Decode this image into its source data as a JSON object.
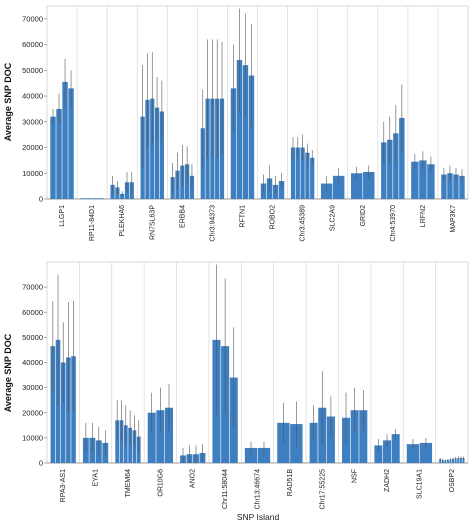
{
  "chart_data": [
    {
      "type": "bar",
      "ylabel": "Average SNP DOC",
      "xlabel": "",
      "ylim": [
        0,
        75000
      ],
      "yticks": [
        0,
        10000,
        20000,
        30000,
        40000,
        50000,
        60000,
        70000
      ],
      "grid": "vertical",
      "bar_color": "#3d7fc1",
      "groups": [
        {
          "name": "LLGP1",
          "values": [
            32000,
            35000,
            45500,
            43000
          ],
          "errors": [
            3000,
            6000,
            9000,
            7000
          ]
        },
        {
          "name": "RP11-84D1",
          "values": [
            300,
            300,
            300,
            300
          ],
          "errors": [
            0,
            0,
            0,
            0
          ]
        },
        {
          "name": "PLEKHA6",
          "values": [
            5500,
            4500,
            2000,
            6500,
            6500
          ],
          "errors": [
            3500,
            2500,
            1000,
            4000,
            4000
          ]
        },
        {
          "name": "RN7SL63P",
          "values": [
            32000,
            38500,
            39000,
            35500,
            34000
          ],
          "errors": [
            20000,
            18000,
            18000,
            12000,
            12000
          ]
        },
        {
          "name": "ERBB4",
          "values": [
            8500,
            11000,
            13000,
            13500,
            9000
          ],
          "errors": [
            5500,
            7000,
            8000,
            7000,
            4500
          ]
        },
        {
          "name": "Chr3:94373",
          "values": [
            27500,
            39000,
            39000,
            39000,
            39000
          ],
          "errors": [
            15000,
            23000,
            23000,
            23000,
            22000
          ]
        },
        {
          "name": "RFTN1",
          "values": [
            43000,
            54000,
            52000,
            48000
          ],
          "errors": [
            17000,
            20000,
            20000,
            20000
          ]
        },
        {
          "name": "ROBO2",
          "values": [
            6000,
            8000,
            5500,
            7000
          ],
          "errors": [
            3500,
            5000,
            3500,
            3000
          ]
        },
        {
          "name": "Chr3:45389",
          "values": [
            20000,
            20000,
            20000,
            18000,
            16000
          ],
          "errors": [
            4000,
            4000,
            5000,
            3500,
            3000
          ]
        },
        {
          "name": "SLC2A9",
          "values": [
            6000,
            9000
          ],
          "errors": [
            3000,
            3000
          ]
        },
        {
          "name": "GRID2",
          "values": [
            10000,
            10500
          ],
          "errors": [
            2500,
            2500
          ]
        },
        {
          "name": "Chr4:53970",
          "values": [
            22000,
            23000,
            25500,
            31500
          ],
          "errors": [
            8000,
            9000,
            11000,
            13000
          ]
        },
        {
          "name": "LRFN2",
          "values": [
            14500,
            15000,
            13500
          ],
          "errors": [
            3000,
            3500,
            3000
          ]
        },
        {
          "name": "MAP3K7",
          "values": [
            9500,
            10000,
            9500,
            9000
          ],
          "errors": [
            2500,
            3000,
            2500,
            2500
          ]
        }
      ]
    },
    {
      "type": "bar",
      "ylabel": "Average SNP DOC",
      "xlabel": "SNP Island",
      "ylim": [
        0,
        80000
      ],
      "yticks": [
        0,
        10000,
        20000,
        30000,
        40000,
        50000,
        60000,
        70000
      ],
      "grid": "vertical",
      "bar_color": "#3d7fc1",
      "groups": [
        {
          "name": "RPA3-AS1",
          "values": [
            46500,
            49000,
            40000,
            42000,
            42500
          ],
          "errors": [
            18000,
            26000,
            16000,
            22000,
            22000
          ]
        },
        {
          "name": "EYA1",
          "values": [
            10000,
            10000,
            9000,
            8000
          ],
          "errors": [
            6000,
            6000,
            5500,
            5000
          ]
        },
        {
          "name": "TMEM64",
          "values": [
            17000,
            17000,
            15000,
            14000,
            13000,
            10500
          ],
          "errors": [
            8000,
            8000,
            8000,
            7000,
            6000,
            6500
          ]
        },
        {
          "name": "OR10G6",
          "values": [
            20000,
            21000,
            22000
          ],
          "errors": [
            8000,
            9000,
            9500
          ]
        },
        {
          "name": "ANO2",
          "values": [
            3000,
            3500,
            3500,
            4000
          ],
          "errors": [
            3000,
            3500,
            3500,
            3500
          ]
        },
        {
          "name": "Chr11:58044",
          "values": [
            49000,
            46500,
            34000
          ],
          "errors": [
            30000,
            27000,
            20000
          ]
        },
        {
          "name": "Chr13:46674",
          "values": [
            6000,
            6000
          ],
          "errors": [
            2500,
            2500
          ]
        },
        {
          "name": "RAD51B",
          "values": [
            16000,
            15500
          ],
          "errors": [
            8000,
            9000
          ]
        },
        {
          "name": "Chr17:55225",
          "values": [
            16000,
            22000,
            18500
          ],
          "errors": [
            7000,
            14500,
            8000
          ]
        },
        {
          "name": "NSF",
          "values": [
            18000,
            21000,
            21000
          ],
          "errors": [
            10000,
            9000,
            8000
          ]
        },
        {
          "name": "ZADH2",
          "values": [
            7000,
            9000,
            11500
          ],
          "errors": [
            2500,
            2500,
            2000
          ]
        },
        {
          "name": "SLC19A1",
          "values": [
            7500,
            8000
          ],
          "errors": [
            2000,
            2000
          ]
        },
        {
          "name": "OSBP2",
          "values": [
            1500,
            1200,
            1000,
            1200,
            1400,
            1600,
            1800,
            2000,
            2000,
            2000
          ],
          "errors": [
            500,
            500,
            400,
            400,
            500,
            500,
            600,
            600,
            600,
            600
          ]
        }
      ]
    }
  ]
}
